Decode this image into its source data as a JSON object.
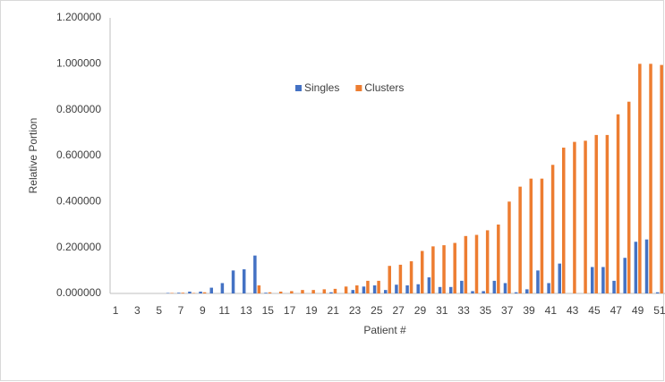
{
  "chart_data": {
    "type": "bar",
    "x_label": "Patient #",
    "y_label": "Relative Portion",
    "categories": [
      "1",
      null,
      "3",
      null,
      "5",
      null,
      "7",
      null,
      "9",
      null,
      "11",
      null,
      "13",
      null,
      "15",
      null,
      "17",
      null,
      "19",
      null,
      "21",
      null,
      "23",
      null,
      "25",
      null,
      "27",
      null,
      "29",
      null,
      "31",
      null,
      "33",
      null,
      "35",
      null,
      "37",
      null,
      "39",
      null,
      "41",
      null,
      "43",
      null,
      "45",
      null,
      "47",
      null,
      "49",
      null,
      "51"
    ],
    "series": [
      {
        "name": "Singles",
        "color": "#4472c4",
        "values": [
          0,
          0,
          0,
          0,
          0,
          0.002,
          0.003,
          0.008,
          0.008,
          0.025,
          0.045,
          0.1,
          0.105,
          0.165,
          0.003,
          0,
          0,
          0,
          0,
          0,
          0.005,
          0,
          0.015,
          0.03,
          0.035,
          0.015,
          0.038,
          0.035,
          0.04,
          0.07,
          0.028,
          0.028,
          0.055,
          0.01,
          0.01,
          0.055,
          0.045,
          0.005,
          0.018,
          0.1,
          0.045,
          0.13,
          0,
          0,
          0.115,
          0.115,
          0.055,
          0.155,
          0.225,
          0.235,
          0.005
        ]
      },
      {
        "name": "Clusters",
        "color": "#ed7d31",
        "values": [
          0,
          0,
          0,
          0,
          0,
          0.002,
          0.003,
          0.002,
          0.005,
          0,
          0,
          0,
          0,
          0.035,
          0.005,
          0.008,
          0.01,
          0.015,
          0.015,
          0.018,
          0.02,
          0.03,
          0.035,
          0.055,
          0.055,
          0.12,
          0.125,
          0.14,
          0.185,
          0.205,
          0.21,
          0.22,
          0.25,
          0.255,
          0.275,
          0.3,
          0.4,
          0.465,
          0.5,
          0.5,
          0.56,
          0.635,
          0.66,
          0.665,
          0.69,
          0.69,
          0.78,
          0.835,
          1.0,
          1.0,
          0.995
        ]
      }
    ],
    "ylim": [
      0,
      1.2
    ],
    "yticks": [
      {
        "value": 0,
        "label": "0.000000"
      },
      {
        "value": 0.2,
        "label": "0.200000"
      },
      {
        "value": 0.4,
        "label": "0.400000"
      },
      {
        "value": 0.6,
        "label": "0.600000"
      },
      {
        "value": 0.8,
        "label": "0.800000"
      },
      {
        "value": 1.0,
        "label": "1.000000"
      },
      {
        "value": 1.2,
        "label": "1.200000"
      }
    ],
    "grid": false,
    "legend": "top"
  }
}
